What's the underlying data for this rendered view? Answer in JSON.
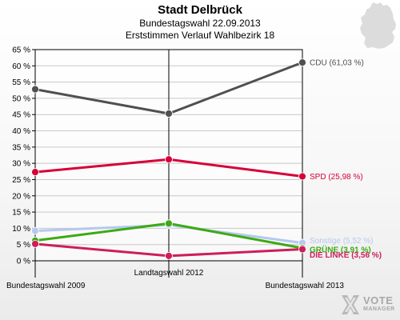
{
  "header": {
    "title": "Stadt Delbrück",
    "subtitle_line1": "Bundestagswahl 22.09.2013",
    "subtitle_line2": "Erststimmen Verlauf Wahlbezirk 18"
  },
  "logo": {
    "line1": "VOTE",
    "line2": "MANAGER"
  },
  "colors": {
    "background_top": "#ffffff",
    "background_bottom": "#ebebeb",
    "map": "#dcdcdc"
  },
  "chart_data": {
    "type": "line",
    "title": "Stadt Delbrück",
    "subtitle": "Bundestagswahl 22.09.2013 / Erststimmen Verlauf Wahlbezirk 18",
    "xlabel": "",
    "ylabel": "",
    "categories": [
      "Bundestagswahl 2009",
      "Landtagswahl 2012",
      "Bundestagswahl 2013"
    ],
    "ylim": [
      0,
      65
    ],
    "yticks": [
      0,
      5,
      10,
      15,
      20,
      25,
      30,
      35,
      40,
      45,
      50,
      55,
      60,
      65
    ],
    "y_tick_labels": [
      "0 %",
      "5 %",
      "10 %",
      "15 %",
      "20 %",
      "25 %",
      "30 %",
      "35 %",
      "40 %",
      "45 %",
      "50 %",
      "55 %",
      "60 %",
      "65 %"
    ],
    "grid": true,
    "series": [
      {
        "name": "CDU",
        "values": [
          52.8,
          45.3,
          61.03
        ],
        "color": "#505050",
        "end_label": "CDU (61,03 %)"
      },
      {
        "name": "SPD",
        "values": [
          27.3,
          31.2,
          25.98
        ],
        "color": "#d70039",
        "end_label": "SPD (25,98 %)"
      },
      {
        "name": "Sonstige",
        "values": [
          9.2,
          11.0,
          5.52
        ],
        "color": "#b4c8f0",
        "end_label": "Sonstige (5,52 %)"
      },
      {
        "name": "GRÜNE",
        "values": [
          6.2,
          11.5,
          3.91
        ],
        "color": "#3caa14",
        "end_label": "GRÜNE (3,91 %)"
      },
      {
        "name": "DIE LINKE",
        "values": [
          5.2,
          1.5,
          3.56
        ],
        "color": "#cd1e5a",
        "end_label": "DIE LINKE (3,56 %)"
      }
    ]
  }
}
